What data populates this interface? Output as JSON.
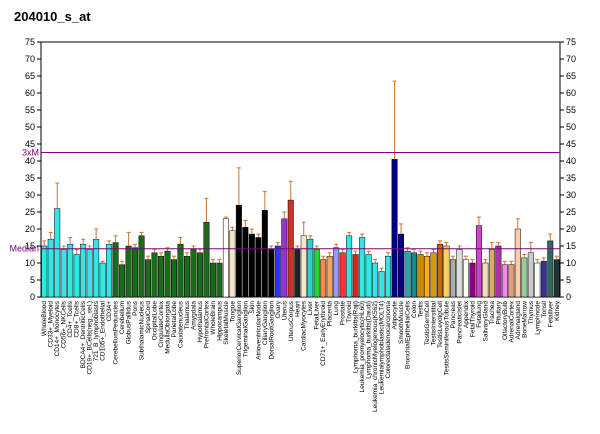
{
  "chart_data": {
    "type": "bar",
    "title": "204010_s_at",
    "categories": [
      "WholeBlood",
      "CD33+_Myeloid",
      "CD14+_Monocytes",
      "CD56+_NKCells",
      "CD4+_Tcells",
      "CD8+_Tcells",
      "BDCA4+_DentriticCells",
      "CD19+_BCells(neg._sel.)",
      "721_B_lymphoblasts",
      "CD105+_Endothelial",
      "CD34+",
      "CerebellumPeduncles",
      "Cerebellum",
      "GlobusPallidus",
      "Pons",
      "SubthalamicNucleus",
      "SpinalCord",
      "OccipitalLobe",
      "CingulateCortex",
      "MedullaOblongata",
      "ParietalLobe",
      "Caudatenucleus",
      "Thalamus",
      "Amygdala",
      "Hypothalamus",
      "PrefrontalCortex",
      "WholeBrain",
      "Hippocampus",
      "SkeletalMuscle",
      "Tongue",
      "SuperiorCervicalGanglion",
      "TrigeminalGanglion",
      "Skin",
      "AtrioventricularNode",
      "CiliaryGanglion",
      "DorsalRootGanglion",
      "Ovary",
      "Uterus",
      "UterusCorpus",
      "Heart",
      "CardiacMyocytes",
      "Liver",
      "FetalLiver",
      "CD71+_EarlyErythroid",
      "Placenta",
      "Lung",
      "Prostate",
      "Thyroid",
      "Lymphoma_burkitts(Raji)",
      "Leukemia_promyelocytic(HL60)",
      "Lymphoma_burkitts(Daudi)",
      "Leukemia_chronicMyelogenous(K562)",
      "Leukemialymphoblastic(MOLT4)",
      "Colorectaladenocarcinoma",
      "Adipocyte",
      "SmoothMuscle",
      "BronchialEpithelialCells",
      "Colon",
      "Testis",
      "TestisGermCell",
      "TestisInterstitial",
      "TestisLeydigCell",
      "TestisSeminiferousTubule",
      "Pancreas",
      "PancreaticIslet",
      "Appendix",
      "FetalThyroid",
      "Fetallung",
      "SalivaryGland",
      "Trachea",
      "Pituitary",
      "OlfactoryBulb",
      "AdrenalCortex",
      "Adrenalgland",
      "BoneMarrow",
      "Thymus",
      "Lymphnode",
      "Tonsil",
      "Fetalliver",
      "Kidney"
    ],
    "values": [
      15,
      17,
      26,
      14,
      15.5,
      12.5,
      15.5,
      14,
      17,
      10,
      15.5,
      16,
      9.5,
      15,
      14.5,
      18,
      11,
      13,
      12,
      13.5,
      11,
      15.5,
      12,
      14,
      13,
      22,
      10,
      10,
      23,
      19.5,
      27,
      20.5,
      18.5,
      17.5,
      25.5,
      14,
      15,
      23,
      28.5,
      14,
      18,
      17,
      14,
      11,
      12,
      14.5,
      13,
      18,
      12.5,
      17.5,
      12.5,
      10,
      7.5,
      12,
      40.5,
      18.5,
      13.5,
      13,
      12.5,
      12,
      13,
      15.5,
      15,
      11,
      14,
      11,
      10,
      21,
      10,
      14,
      15,
      9.5,
      9.5,
      20,
      11.5,
      13,
      10,
      10.5,
      16.5,
      11
    ],
    "errors": [
      1.5,
      2,
      7.5,
      1,
      2,
      1.5,
      1.5,
      1,
      3,
      0.5,
      1,
      2,
      1,
      4,
      1,
      1,
      1,
      1,
      1,
      1,
      1,
      2,
      1,
      1,
      1,
      7,
      1,
      1,
      0.5,
      1,
      11,
      2,
      1.5,
      1,
      5.5,
      1,
      1,
      2,
      5.5,
      1,
      4,
      1,
      1,
      1,
      1,
      1,
      1,
      1,
      1,
      1,
      1,
      1,
      1,
      1,
      23,
      3,
      1,
      1,
      1,
      1,
      1,
      1,
      1,
      1,
      1,
      1,
      1,
      2.5,
      1,
      2,
      1,
      1,
      1,
      3,
      1,
      3,
      1,
      1,
      2,
      1
    ],
    "colors": [
      "#33e6e6",
      "#33e6e6",
      "#33e6e6",
      "#33e6e6",
      "#33e6e6",
      "#33e6e6",
      "#33e6e6",
      "#33e6e6",
      "#33e6e6",
      "#33e6e6",
      "#33e6e6",
      "#1a6b1a",
      "#1a6b1a",
      "#1a6b1a",
      "#1a6b1a",
      "#1a6b1a",
      "#1a6b1a",
      "#1a6b1a",
      "#1a6b1a",
      "#1a6b1a",
      "#1a6b1a",
      "#1a6b1a",
      "#1a6b1a",
      "#1a6b1a",
      "#1a6b1a",
      "#1a6b1a",
      "#1a6b1a",
      "#1a6b1a",
      "#ffffff",
      "#f5e6c8",
      "#000000",
      "#000000",
      "#000000",
      "#000000",
      "#000000",
      "#000000",
      "#3333ff",
      "#9933cc",
      "#cc3322",
      "#222222",
      "#f5e6c8",
      "#33cccc",
      "#33cc33",
      "#ff8844",
      "#f4a460",
      "#9999ff",
      "#ff3333",
      "#33e6e6",
      "#dd2222",
      "#33e6e6",
      "#33e6e6",
      "#33e6e6",
      "#33e6e6",
      "#33e6e6",
      "#000080",
      "#000080",
      "#22aaaa",
      "#1a8888",
      "#cc8800",
      "#ffaa22",
      "#dd9900",
      "#cc6600",
      "#ffcc66",
      "#aaaaaa",
      "#dddddd",
      "#ffffff",
      "#880088",
      "#cc44cc",
      "#f5deb3",
      "#ddaa66",
      "#aa33aa",
      "#ee88ee",
      "#ee9977",
      "#ffccaa",
      "#99cc99",
      "#cccccc",
      "#ffffff",
      "#333399",
      "#336666",
      "#223333"
    ],
    "ylim": [
      0,
      75
    ],
    "yticks": [
      0,
      5,
      10,
      15,
      20,
      25,
      30,
      35,
      40,
      45,
      50,
      55,
      60,
      65,
      70,
      75
    ],
    "lines": [
      {
        "label": "3xM",
        "value": 42.5
      },
      {
        "label": "Median",
        "value": 14.2
      }
    ]
  }
}
